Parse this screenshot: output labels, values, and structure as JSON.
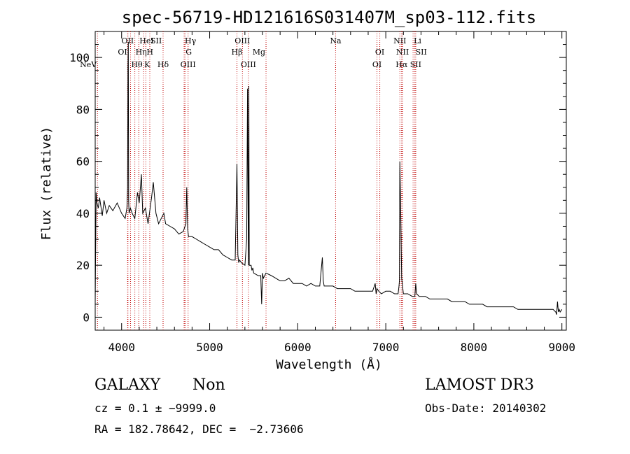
{
  "chart_data": {
    "type": "line",
    "title": "spec-56719-HD121616S031407M_sp03-112.fits",
    "xlabel": "Wavelength (Å)",
    "ylabel": "Flux (relative)",
    "xlim": [
      3700,
      9050
    ],
    "ylim": [
      -5,
      110
    ],
    "xticks": [
      4000,
      5000,
      6000,
      7000,
      8000,
      9000
    ],
    "yticks": [
      0,
      20,
      40,
      60,
      80,
      100
    ],
    "xminor": 200,
    "yminor": 5,
    "series": [
      {
        "name": "flux",
        "x": [
          3700,
          3710,
          3720,
          3735,
          3750,
          3780,
          3800,
          3830,
          3860,
          3900,
          3950,
          4000,
          4040,
          4060,
          4068,
          4072,
          4076,
          4080,
          4085,
          4100,
          4120,
          4150,
          4180,
          4200,
          4225,
          4240,
          4270,
          4300,
          4340,
          4360,
          4390,
          4420,
          4450,
          4480,
          4500,
          4550,
          4600,
          4650,
          4700,
          4730,
          4740,
          4746,
          4750,
          4760,
          4800,
          4850,
          4900,
          4950,
          5000,
          5050,
          5100,
          5150,
          5200,
          5250,
          5290,
          5310,
          5320,
          5330,
          5340,
          5360,
          5400,
          5420,
          5430,
          5436,
          5440,
          5445,
          5450,
          5470,
          5480,
          5490,
          5500,
          5550,
          5580,
          5590,
          5600,
          5610,
          5640,
          5700,
          5750,
          5800,
          5850,
          5900,
          5950,
          6000,
          6050,
          6100,
          6150,
          6200,
          6250,
          6280,
          6290,
          6300,
          6310,
          6320,
          6350,
          6400,
          6450,
          6500,
          6550,
          6600,
          6650,
          6700,
          6750,
          6800,
          6850,
          6880,
          6890,
          6900,
          6920,
          6950,
          7000,
          7050,
          7100,
          7140,
          7150,
          7155,
          7160,
          7170,
          7180,
          7200,
          7250,
          7300,
          7330,
          7340,
          7350,
          7380,
          7400,
          7450,
          7500,
          7550,
          7600,
          7650,
          7700,
          7750,
          7800,
          7850,
          7900,
          7950,
          8000,
          8050,
          8100,
          8150,
          8200,
          8250,
          8300,
          8350,
          8400,
          8450,
          8500,
          8550,
          8600,
          8650,
          8700,
          8750,
          8800,
          8850,
          8900,
          8930,
          8940,
          8950,
          8960,
          8970,
          8980,
          9000
        ],
        "y": [
          5,
          48,
          44,
          42,
          46,
          39,
          45,
          40,
          43,
          41,
          44,
          40,
          38,
          42,
          50,
          96,
          106,
          45,
          40,
          42,
          40,
          38,
          48,
          44,
          55,
          40,
          42,
          36,
          46,
          52,
          40,
          36,
          38,
          40,
          36,
          35,
          34,
          32,
          33,
          36,
          50,
          40,
          34,
          31,
          31,
          30,
          29,
          28,
          27,
          26,
          26,
          24,
          23,
          22,
          22,
          59,
          24,
          21,
          22,
          21,
          20,
          30,
          88,
          42,
          20,
          89,
          20,
          20,
          18,
          19,
          17,
          16,
          16,
          5,
          17,
          15,
          17,
          16,
          15,
          14,
          14,
          15,
          13,
          13,
          13,
          12,
          13,
          12,
          12,
          23,
          14,
          12,
          12,
          12,
          12,
          12,
          11,
          11,
          11,
          11,
          10,
          10,
          10,
          10,
          10,
          13,
          9,
          11,
          10,
          9,
          10,
          10,
          9,
          9,
          12,
          14,
          60,
          40,
          15,
          9,
          9,
          8,
          8,
          13,
          9,
          8,
          8,
          8,
          7,
          7,
          7,
          7,
          7,
          6,
          6,
          6,
          6,
          5,
          5,
          5,
          5,
          4,
          4,
          4,
          4,
          4,
          4,
          4,
          3,
          3,
          3,
          3,
          3,
          3,
          3,
          3,
          3,
          2,
          1,
          6,
          2,
          3,
          2,
          3
        ]
      }
    ],
    "line_markers": [
      {
        "label": "NeV",
        "wavelength": 3726,
        "row": 3,
        "anchor": "end"
      },
      {
        "label": "OII",
        "wavelength": 4068,
        "row": 0,
        "anchor": "middle"
      },
      {
        "label": "OI",
        "wavelength": 4072,
        "row": 1,
        "anchor": "end"
      },
      {
        "label": "Hθ",
        "wavelength": 4101,
        "row": 2,
        "anchor": "start"
      },
      {
        "label": "Hη",
        "wavelength": 4150,
        "row": 1,
        "anchor": "start"
      },
      {
        "label": "HeI",
        "wavelength": 4195,
        "row": 0,
        "anchor": "start"
      },
      {
        "label": "K",
        "wavelength": 4250,
        "row": 2,
        "anchor": "start"
      },
      {
        "label": "H",
        "wavelength": 4275,
        "row": 1,
        "anchor": "start"
      },
      {
        "label": "SII",
        "wavelength": 4320,
        "row": 0,
        "anchor": "start"
      },
      {
        "label": "Hδ",
        "wavelength": 4471,
        "row": 2,
        "anchor": "middle"
      },
      {
        "label": "Hγ",
        "wavelength": 4710,
        "row": 0,
        "anchor": "start"
      },
      {
        "label": "G",
        "wavelength": 4720,
        "row": 1,
        "anchor": "start"
      },
      {
        "label": "OIII",
        "wavelength": 4755,
        "row": 2,
        "anchor": "middle"
      },
      {
        "label": "Hβ",
        "wavelength": 5310,
        "row": 1,
        "anchor": "middle"
      },
      {
        "label": "OIII",
        "wavelength": 5372,
        "row": 0,
        "anchor": "middle"
      },
      {
        "label": "OIII",
        "wavelength": 5440,
        "row": 2,
        "anchor": "middle"
      },
      {
        "label": "Mg",
        "wavelength": 5640,
        "row": 1,
        "anchor": "end"
      },
      {
        "label": "Na",
        "wavelength": 6430,
        "row": 0,
        "anchor": "middle"
      },
      {
        "label": "OI",
        "wavelength": 6932,
        "row": 1,
        "anchor": "middle"
      },
      {
        "label": "OI",
        "wavelength": 6900,
        "row": 2,
        "anchor": "middle"
      },
      {
        "label": "NII",
        "wavelength": 7160,
        "row": 0,
        "anchor": "middle"
      },
      {
        "label": "NII",
        "wavelength": 7190,
        "row": 1,
        "anchor": "middle"
      },
      {
        "label": "Hα",
        "wavelength": 7180,
        "row": 2,
        "anchor": "middle"
      },
      {
        "label": "Li",
        "wavelength": 7310,
        "row": 0,
        "anchor": "start"
      },
      {
        "label": "SII",
        "wavelength": 7330,
        "row": 1,
        "anchor": "start"
      },
      {
        "label": "SII",
        "wavelength": 7340,
        "row": 2,
        "anchor": "middle"
      }
    ],
    "marker_color": "#c00000",
    "line_color": "#000000"
  },
  "info": {
    "class_label": "GALAXY",
    "subclass": "Non",
    "survey": "LAMOST DR3",
    "cz_text": "cz = 0.1 ± −9999.0",
    "obs_date": "Obs-Date: 20140302",
    "coords": "RA = 182.78642, DEC =  −2.73606"
  }
}
